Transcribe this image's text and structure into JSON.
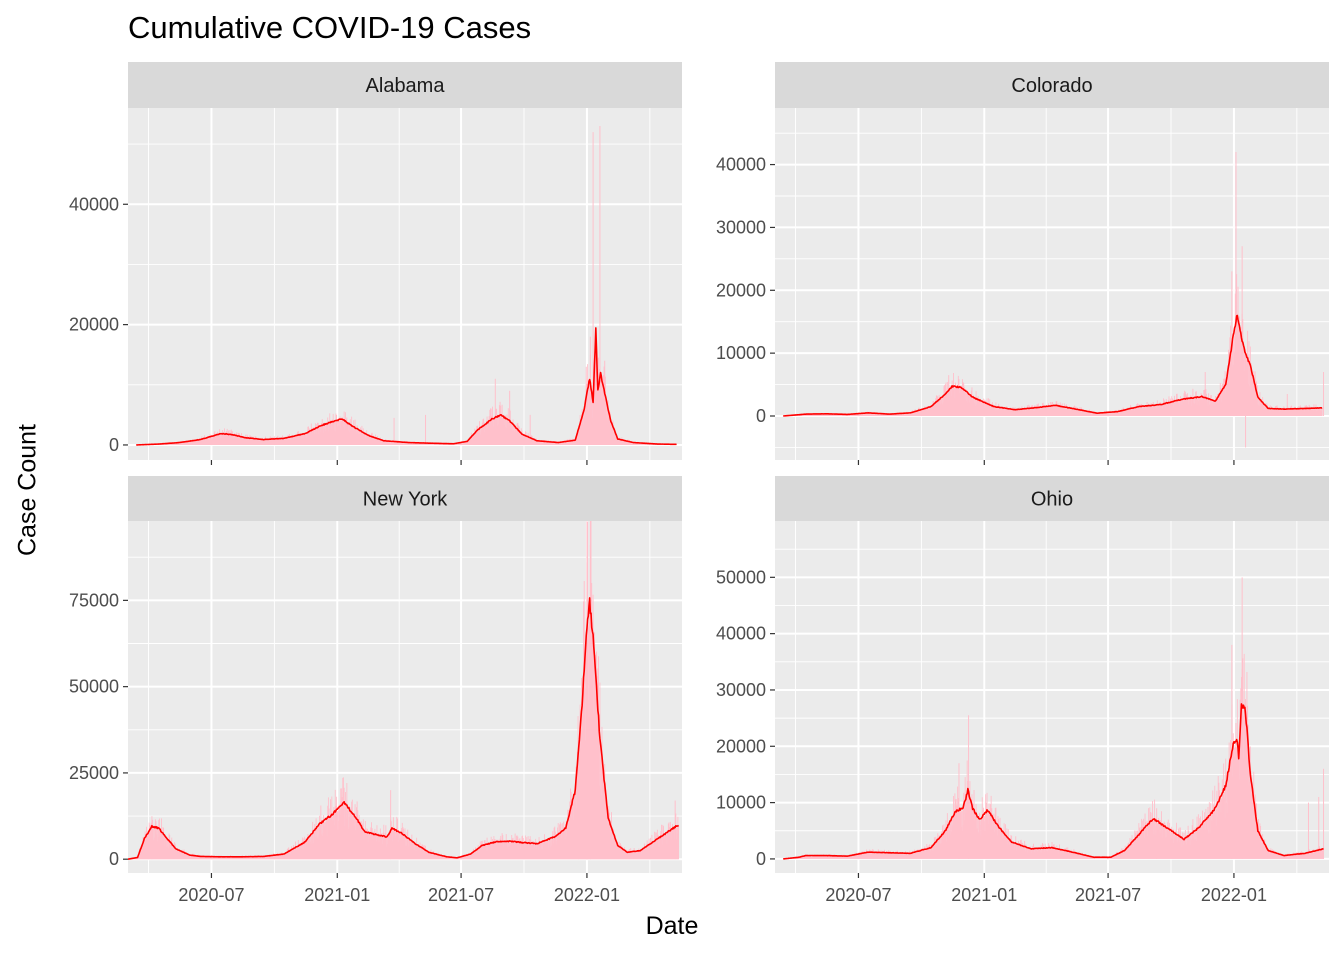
{
  "title": "Cumulative COVID-19 Cases",
  "xlabel": "Date",
  "ylabel": "Case Count",
  "colors": {
    "panel_bg": "#ebebeb",
    "strip_bg": "#d9d9d9",
    "grid": "#ffffff",
    "bars": "#ffc0cb",
    "line": "#ff0000",
    "tick_text": "#4d4d4d"
  },
  "chart_data": {
    "type": "bar",
    "overlay": "line (rolling average)",
    "layout": "facet 2x2, shared x axis, free y axes",
    "grid": true,
    "legend": "none",
    "xlim": [
      "2020-03-01",
      "2022-05-20"
    ],
    "x_ticks": [
      "2020-07",
      "2021-01",
      "2021-07",
      "2022-01"
    ],
    "panels": [
      {
        "name": "Alabama",
        "ylim": [
          -2500,
          56000
        ],
        "y_ticks": [
          0,
          20000,
          40000
        ],
        "line": [
          [
            "2020-03-13",
            0
          ],
          [
            "2020-04-15",
            150
          ],
          [
            "2020-05-15",
            400
          ],
          [
            "2020-06-15",
            900
          ],
          [
            "2020-07-15",
            1900
          ],
          [
            "2020-08-01",
            1700
          ],
          [
            "2020-08-20",
            1200
          ],
          [
            "2020-09-15",
            900
          ],
          [
            "2020-10-15",
            1100
          ],
          [
            "2020-11-15",
            1900
          ],
          [
            "2020-12-10",
            3300
          ],
          [
            "2020-12-28",
            4000
          ],
          [
            "2021-01-08",
            4300
          ],
          [
            "2021-01-25",
            3000
          ],
          [
            "2021-02-15",
            1600
          ],
          [
            "2021-03-10",
            700
          ],
          [
            "2021-04-15",
            400
          ],
          [
            "2021-05-15",
            300
          ],
          [
            "2021-06-20",
            200
          ],
          [
            "2021-07-10",
            600
          ],
          [
            "2021-07-25",
            2500
          ],
          [
            "2021-08-15",
            4300
          ],
          [
            "2021-08-28",
            5000
          ],
          [
            "2021-09-10",
            4000
          ],
          [
            "2021-09-28",
            1800
          ],
          [
            "2021-10-20",
            700
          ],
          [
            "2021-11-20",
            400
          ],
          [
            "2021-12-15",
            800
          ],
          [
            "2021-12-28",
            6000
          ],
          [
            "2022-01-05",
            11000
          ],
          [
            "2022-01-10",
            7000
          ],
          [
            "2022-01-14",
            19000
          ],
          [
            "2022-01-17",
            9000
          ],
          [
            "2022-01-21",
            12000
          ],
          [
            "2022-01-28",
            8000
          ],
          [
            "2022-02-05",
            4000
          ],
          [
            "2022-02-15",
            1000
          ],
          [
            "2022-03-10",
            400
          ],
          [
            "2022-04-15",
            150
          ],
          [
            "2022-05-12",
            100
          ]
        ],
        "bar_spikes": [
          [
            "2022-01-10",
            52000
          ],
          [
            "2022-01-20",
            53000
          ],
          [
            "2022-01-06",
            18000
          ],
          [
            "2021-12-31",
            13000
          ],
          [
            "2022-01-27",
            14000
          ],
          [
            "2021-08-20",
            11000
          ],
          [
            "2021-09-10",
            9000
          ],
          [
            "2021-10-10",
            5000
          ],
          [
            "2021-05-10",
            5000
          ],
          [
            "2021-03-25",
            4500
          ]
        ]
      },
      {
        "name": "Colorado",
        "ylim": [
          -7000,
          49000
        ],
        "y_ticks": [
          0,
          10000,
          20000,
          30000,
          40000
        ],
        "line": [
          [
            "2020-03-13",
            0
          ],
          [
            "2020-04-15",
            300
          ],
          [
            "2020-05-15",
            350
          ],
          [
            "2020-06-15",
            250
          ],
          [
            "2020-07-15",
            500
          ],
          [
            "2020-08-15",
            300
          ],
          [
            "2020-09-15",
            500
          ],
          [
            "2020-10-15",
            1500
          ],
          [
            "2020-11-05",
            3500
          ],
          [
            "2020-11-15",
            4700
          ],
          [
            "2020-11-28",
            4600
          ],
          [
            "2020-12-15",
            3000
          ],
          [
            "2021-01-15",
            1500
          ],
          [
            "2021-02-15",
            1000
          ],
          [
            "2021-03-15",
            1300
          ],
          [
            "2021-04-15",
            1700
          ],
          [
            "2021-05-10",
            1200
          ],
          [
            "2021-06-15",
            450
          ],
          [
            "2021-07-15",
            700
          ],
          [
            "2021-08-15",
            1500
          ],
          [
            "2021-09-15",
            1800
          ],
          [
            "2021-10-15",
            2600
          ],
          [
            "2021-11-15",
            3100
          ],
          [
            "2021-12-05",
            2400
          ],
          [
            "2021-12-20",
            5000
          ],
          [
            "2021-12-30",
            12000
          ],
          [
            "2022-01-06",
            16200
          ],
          [
            "2022-01-15",
            11000
          ],
          [
            "2022-01-25",
            8000
          ],
          [
            "2022-02-05",
            3000
          ],
          [
            "2022-02-20",
            1200
          ],
          [
            "2022-03-15",
            1100
          ],
          [
            "2022-04-15",
            1200
          ],
          [
            "2022-05-10",
            1300
          ]
        ],
        "bar_spikes": [
          [
            "2022-01-04",
            42000
          ],
          [
            "2022-01-13",
            27000
          ],
          [
            "2021-12-29",
            23000
          ],
          [
            "2022-01-18",
            -5000
          ],
          [
            "2021-11-20",
            7000
          ],
          [
            "2022-05-12",
            7000
          ],
          [
            "2020-11-10",
            6500
          ],
          [
            "2022-03-20",
            3500
          ]
        ]
      },
      {
        "name": "New York",
        "ylim": [
          -4000,
          98000
        ],
        "y_ticks": [
          0,
          25000,
          50000,
          75000
        ],
        "line": [
          [
            "2020-03-01",
            0
          ],
          [
            "2020-03-15",
            500
          ],
          [
            "2020-03-25",
            6000
          ],
          [
            "2020-04-05",
            9500
          ],
          [
            "2020-04-15",
            9000
          ],
          [
            "2020-04-25",
            6500
          ],
          [
            "2020-05-10",
            3000
          ],
          [
            "2020-05-30",
            1200
          ],
          [
            "2020-06-15",
            800
          ],
          [
            "2020-07-15",
            700
          ],
          [
            "2020-08-15",
            700
          ],
          [
            "2020-09-15",
            800
          ],
          [
            "2020-10-15",
            1500
          ],
          [
            "2020-11-15",
            5000
          ],
          [
            "2020-12-05",
            10000
          ],
          [
            "2020-12-25",
            13000
          ],
          [
            "2021-01-10",
            16500
          ],
          [
            "2021-01-25",
            13000
          ],
          [
            "2021-02-10",
            8000
          ],
          [
            "2021-03-01",
            7000
          ],
          [
            "2021-03-15",
            6500
          ],
          [
            "2021-03-22",
            9000
          ],
          [
            "2021-04-05",
            7500
          ],
          [
            "2021-04-25",
            4500
          ],
          [
            "2021-05-15",
            2000
          ],
          [
            "2021-06-10",
            700
          ],
          [
            "2021-06-25",
            400
          ],
          [
            "2021-07-15",
            1500
          ],
          [
            "2021-08-01",
            4000
          ],
          [
            "2021-08-20",
            5000
          ],
          [
            "2021-09-10",
            5200
          ],
          [
            "2021-10-01",
            4800
          ],
          [
            "2021-10-20",
            4500
          ],
          [
            "2021-11-15",
            6500
          ],
          [
            "2021-12-01",
            9000
          ],
          [
            "2021-12-15",
            20000
          ],
          [
            "2021-12-25",
            45000
          ],
          [
            "2022-01-01",
            68000
          ],
          [
            "2022-01-05",
            74000
          ],
          [
            "2022-01-10",
            65000
          ],
          [
            "2022-01-20",
            35000
          ],
          [
            "2022-02-01",
            12000
          ],
          [
            "2022-02-15",
            4000
          ],
          [
            "2022-03-01",
            2000
          ],
          [
            "2022-03-20",
            2500
          ],
          [
            "2022-04-15",
            6000
          ],
          [
            "2022-05-15",
            10000
          ]
        ],
        "bar_spikes": [
          [
            "2022-01-01",
            86000
          ],
          [
            "2022-01-06",
            91000
          ],
          [
            "2021-03-20",
            20000
          ],
          [
            "2021-01-08",
            18000
          ],
          [
            "2022-05-10",
            17000
          ],
          [
            "2020-04-05",
            11000
          ],
          [
            "2021-12-20",
            35000
          ]
        ]
      },
      {
        "name": "Ohio",
        "ylim": [
          -2500,
          60000
        ],
        "y_ticks": [
          0,
          10000,
          20000,
          30000,
          40000,
          50000
        ],
        "line": [
          [
            "2020-03-13",
            0
          ],
          [
            "2020-04-05",
            300
          ],
          [
            "2020-04-15",
            600
          ],
          [
            "2020-05-15",
            600
          ],
          [
            "2020-06-15",
            500
          ],
          [
            "2020-07-15",
            1200
          ],
          [
            "2020-08-15",
            1100
          ],
          [
            "2020-09-15",
            1000
          ],
          [
            "2020-10-15",
            2000
          ],
          [
            "2020-11-05",
            5000
          ],
          [
            "2020-11-20",
            8500
          ],
          [
            "2020-12-01",
            9000
          ],
          [
            "2020-12-08",
            12200
          ],
          [
            "2020-12-15",
            9000
          ],
          [
            "2020-12-25",
            7000
          ],
          [
            "2021-01-06",
            8700
          ],
          [
            "2021-01-20",
            6000
          ],
          [
            "2021-02-10",
            3000
          ],
          [
            "2021-03-10",
            1800
          ],
          [
            "2021-04-10",
            2000
          ],
          [
            "2021-05-10",
            1200
          ],
          [
            "2021-06-10",
            300
          ],
          [
            "2021-07-05",
            300
          ],
          [
            "2021-07-25",
            1500
          ],
          [
            "2021-08-20",
            5000
          ],
          [
            "2021-09-05",
            7200
          ],
          [
            "2021-09-25",
            5500
          ],
          [
            "2021-10-20",
            3500
          ],
          [
            "2021-11-10",
            5500
          ],
          [
            "2021-12-05",
            9000
          ],
          [
            "2021-12-20",
            13000
          ],
          [
            "2021-12-30",
            20000
          ],
          [
            "2022-01-05",
            21500
          ],
          [
            "2022-01-08",
            18000
          ],
          [
            "2022-01-12",
            27500
          ],
          [
            "2022-01-18",
            26000
          ],
          [
            "2022-01-25",
            15000
          ],
          [
            "2022-02-05",
            5000
          ],
          [
            "2022-02-20",
            1500
          ],
          [
            "2022-03-15",
            600
          ],
          [
            "2022-04-15",
            1000
          ],
          [
            "2022-05-12",
            1800
          ]
        ],
        "bar_spikes": [
          [
            "2022-01-13",
            50000
          ],
          [
            "2021-12-29",
            38000
          ],
          [
            "2020-12-09",
            25500
          ],
          [
            "2020-11-25",
            17000
          ],
          [
            "2022-05-12",
            16000
          ],
          [
            "2021-09-10",
            9000
          ],
          [
            "2022-04-20",
            10000
          ],
          [
            "2022-05-05",
            11000
          ]
        ]
      }
    ]
  }
}
